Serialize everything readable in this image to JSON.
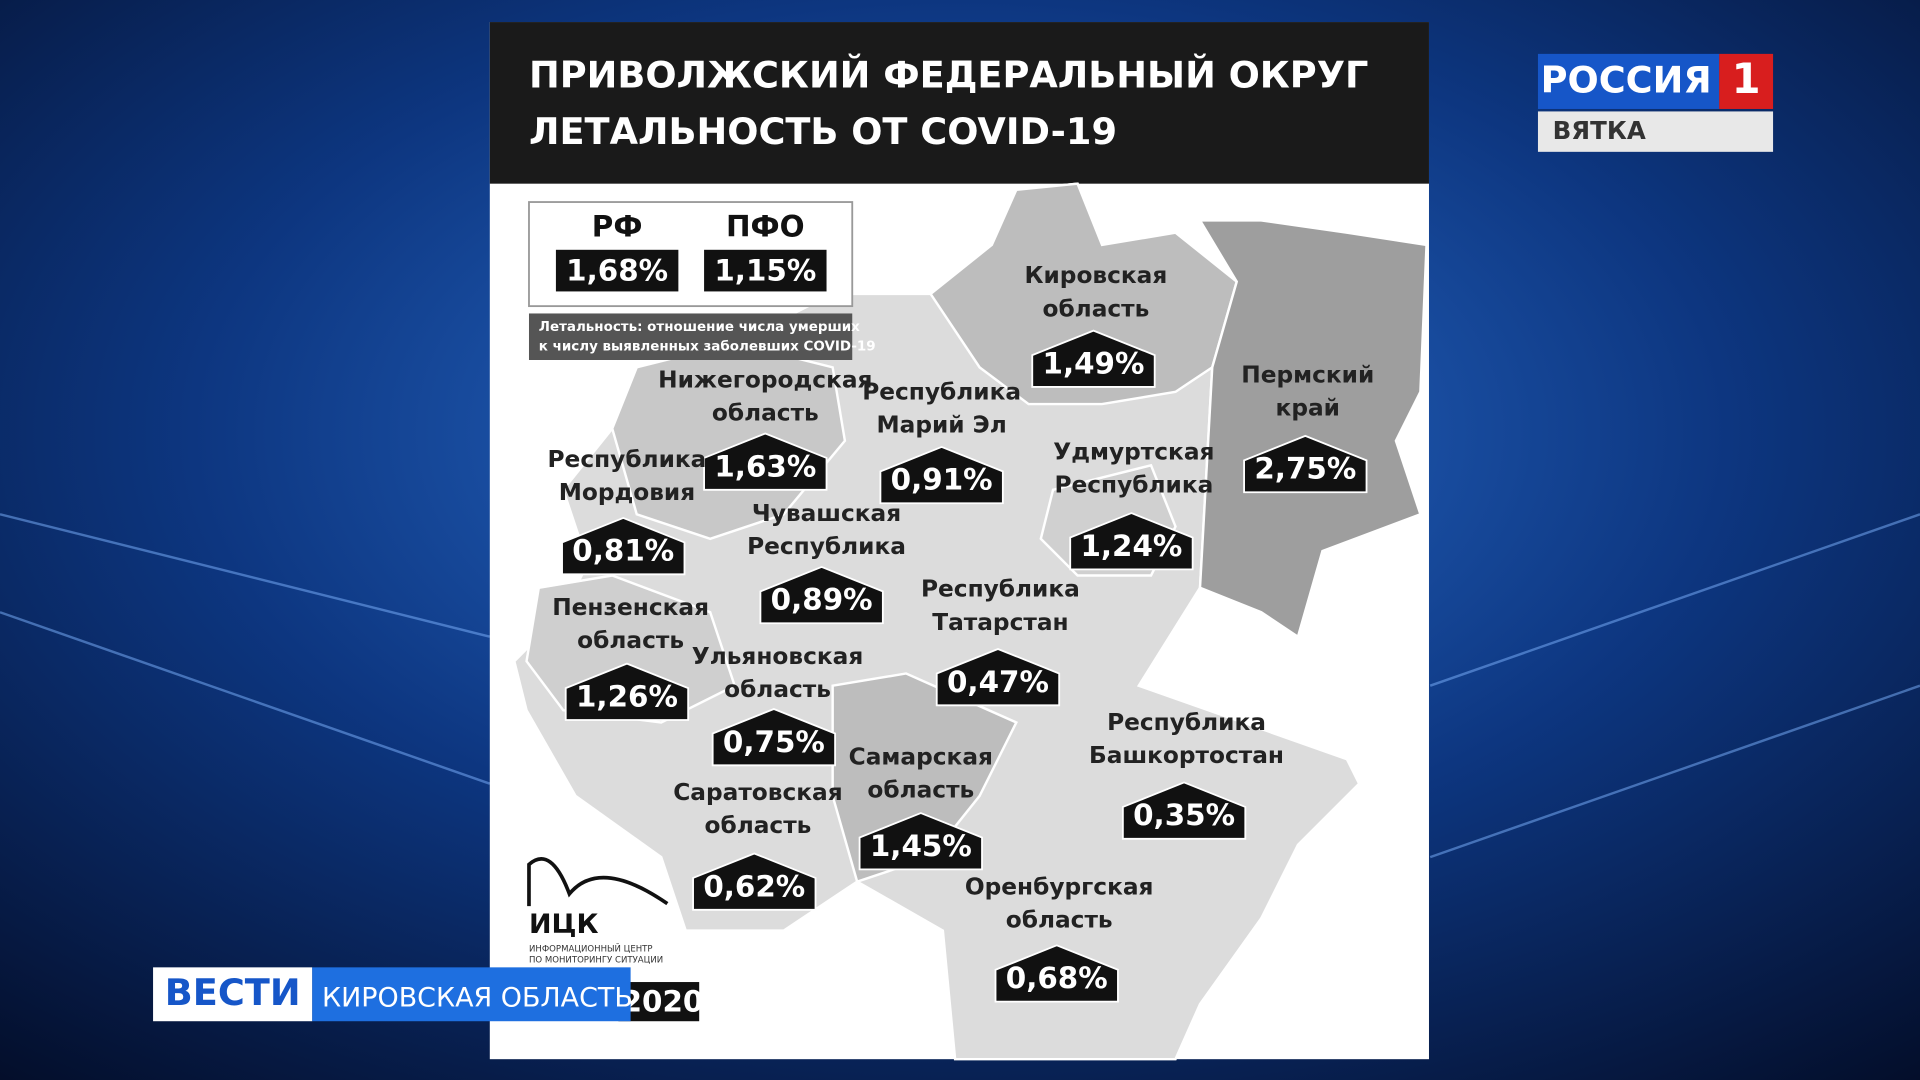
{
  "header": {
    "title": [
      "ПРИВОЛЖСКИЙ ФЕДЕРАЛЬНЫЙ ОКРУГ",
      "ЛЕТАЛЬНОСТЬ ОТ COVID-19"
    ]
  },
  "summary": [
    {
      "label": "РФ",
      "value": "1,68%"
    },
    {
      "label": "ПФО",
      "value": "1,15%"
    }
  ],
  "note": [
    "Летальность: отношение числа умерших",
    "к числу выявленных заболевших COVID-19"
  ],
  "regions": [
    {
      "name": [
        "Кировская",
        "область"
      ],
      "value": "1,49%"
    },
    {
      "name": [
        "Пермский",
        "край"
      ],
      "value": "2,75%"
    },
    {
      "name": [
        "Нижегородская",
        "область"
      ],
      "value": "1,63%"
    },
    {
      "name": [
        "Республика",
        "Марий Эл"
      ],
      "value": "0,91%"
    },
    {
      "name": [
        "Удмуртская",
        "Республика"
      ],
      "value": "1,24%"
    },
    {
      "name": [
        "Республика",
        "Мордовия"
      ],
      "value": "0,81%"
    },
    {
      "name": [
        "Чувашская",
        "Республика"
      ],
      "value": "0,89%"
    },
    {
      "name": [
        "Республика",
        "Татарстан"
      ],
      "value": "0,47%"
    },
    {
      "name": [
        "Пензенская",
        "область"
      ],
      "value": "1,26%"
    },
    {
      "name": [
        "Ульяновская",
        "область"
      ],
      "value": "0,75%"
    },
    {
      "name": [
        "Самарская",
        "область"
      ],
      "value": "1,45%"
    },
    {
      "name": [
        "Республика",
        "Башкортостан"
      ],
      "value": "0,35%"
    },
    {
      "name": [
        "Саратовская",
        "область"
      ],
      "value": "0,62%"
    },
    {
      "name": [
        "Оренбургская",
        "область"
      ],
      "value": "0,68%"
    }
  ],
  "logo": {
    "name": "ИЦК",
    "subtitle": [
      "ИНФОРМАЦИОННЫЙ ЦЕНТР",
      "ПО МОНИТОРИНГУ СИТУАЦИИ"
    ]
  },
  "date": "2020",
  "channel": {
    "name": "РОССИЯ",
    "number": "1",
    "region": "ВЯТКА"
  },
  "banner": {
    "program": "ВЕСТИ",
    "region": "КИРОВСКАЯ ОБЛАСТЬ"
  }
}
